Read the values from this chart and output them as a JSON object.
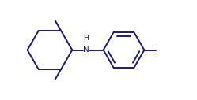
{
  "background_color": "#ffffff",
  "line_color": "#1c1c6e",
  "line_width": 1.4,
  "font_size_N": 7.5,
  "font_size_H": 6.5,
  "fig_width": 2.49,
  "fig_height": 1.27,
  "dpi": 100,
  "xlim": [
    0,
    10
  ],
  "ylim": [
    0,
    5.1
  ]
}
